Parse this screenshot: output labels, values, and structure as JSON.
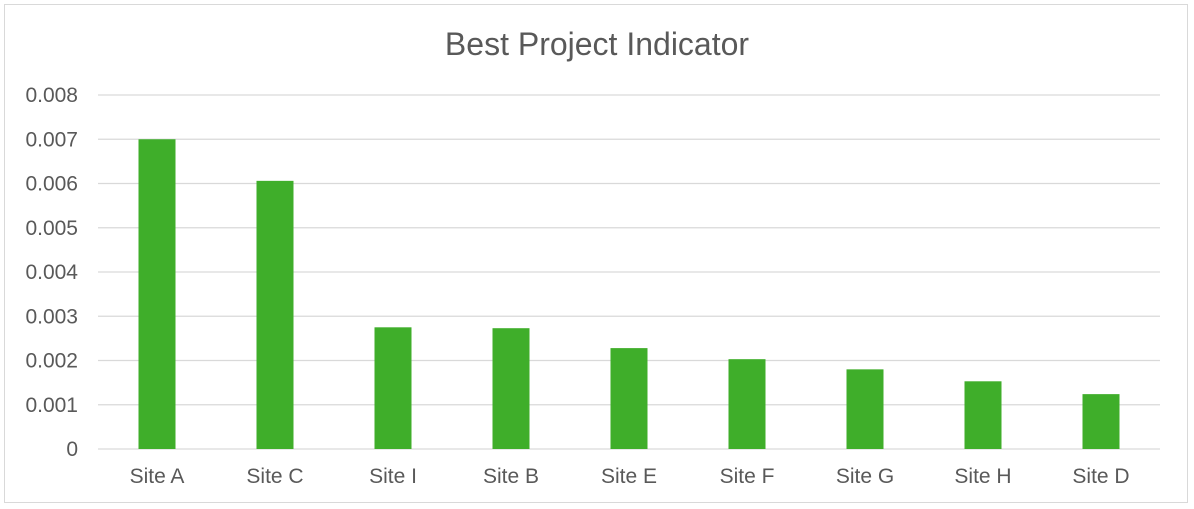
{
  "chart_data": {
    "type": "bar",
    "title": "Best Project Indicator",
    "xlabel": "",
    "ylabel": "",
    "categories": [
      "Site A",
      "Site C",
      "Site I",
      "Site B",
      "Site E",
      "Site F",
      "Site G",
      "Site H",
      "Site D"
    ],
    "values": [
      0.007,
      0.00606,
      0.00275,
      0.00273,
      0.00228,
      0.00203,
      0.0018,
      0.00153,
      0.00124
    ],
    "ylim": [
      0,
      0.008
    ],
    "yticks": [
      "0",
      "0.001",
      "0.002",
      "0.003",
      "0.004",
      "0.005",
      "0.006",
      "0.007",
      "0.008"
    ],
    "grid": true,
    "legend": "none",
    "colors": {
      "bar": "#3FAE2A",
      "grid": "#d9d9d9",
      "text": "#595959"
    }
  }
}
